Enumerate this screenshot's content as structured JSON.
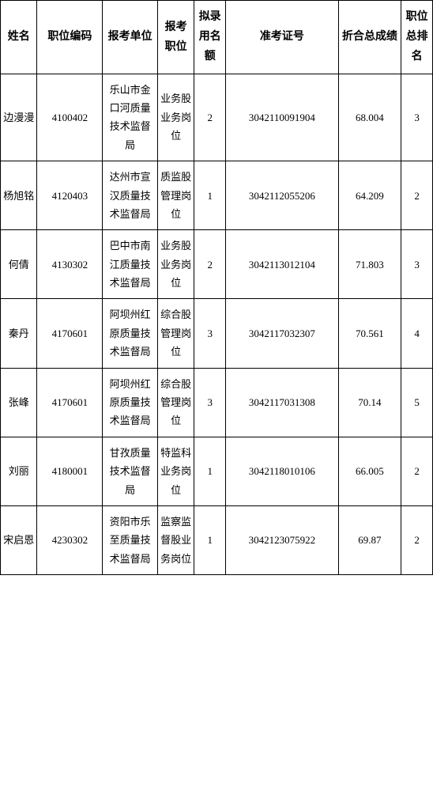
{
  "headers": {
    "name": "姓名",
    "position_code": "职位编码",
    "dept": "报考单位",
    "position": "报考职位",
    "quota": "拟录用名额",
    "exam_no": "准考证号",
    "score": "折合总成绩",
    "rank": "职位总排名"
  },
  "rows": [
    {
      "name": "边漫漫",
      "position_code": "4100402",
      "dept": "乐山市金口河质量技术监督局",
      "position": "业务股业务岗位",
      "quota": "2",
      "exam_no": "3042110091904",
      "score": "68.004",
      "rank": "3"
    },
    {
      "name": "杨旭铭",
      "position_code": "4120403",
      "dept": "达州市宣汉质量技术监督局",
      "position": "质监股管理岗位",
      "quota": "1",
      "exam_no": "3042112055206",
      "score": "64.209",
      "rank": "2"
    },
    {
      "name": "何倩",
      "position_code": "4130302",
      "dept": "巴中市南江质量技术监督局",
      "position": "业务股业务岗位",
      "quota": "2",
      "exam_no": "3042113012104",
      "score": "71.803",
      "rank": "3"
    },
    {
      "name": "秦丹",
      "position_code": "4170601",
      "dept": "阿坝州红原质量技术监督局",
      "position": "综合股管理岗位",
      "quota": "3",
      "exam_no": "3042117032307",
      "score": "70.561",
      "rank": "4"
    },
    {
      "name": "张峰",
      "position_code": "4170601",
      "dept": "阿坝州红原质量技术监督局",
      "position": "综合股管理岗位",
      "quota": "3",
      "exam_no": "3042117031308",
      "score": "70.14",
      "rank": "5"
    },
    {
      "name": "刘丽",
      "position_code": "4180001",
      "dept": "甘孜质量技术监督局",
      "position": "特监科业务岗位",
      "quota": "1",
      "exam_no": "3042118010106",
      "score": "66.005",
      "rank": "2"
    },
    {
      "name": "宋启恩",
      "position_code": "4230302",
      "dept": "资阳市乐至质量技术监督局",
      "position": "监察监督股业务岗位",
      "quota": "1",
      "exam_no": "3042123075922",
      "score": "69.87",
      "rank": "2"
    }
  ],
  "style": {
    "border_color": "#000000",
    "background_color": "#ffffff",
    "text_color": "#000000",
    "font_family": "SimSun",
    "header_fontsize": 14,
    "cell_fontsize": 13,
    "line_height": 1.8,
    "column_widths_pct": [
      7,
      12.5,
      10.5,
      7,
      6,
      21.5,
      12,
      6
    ]
  }
}
